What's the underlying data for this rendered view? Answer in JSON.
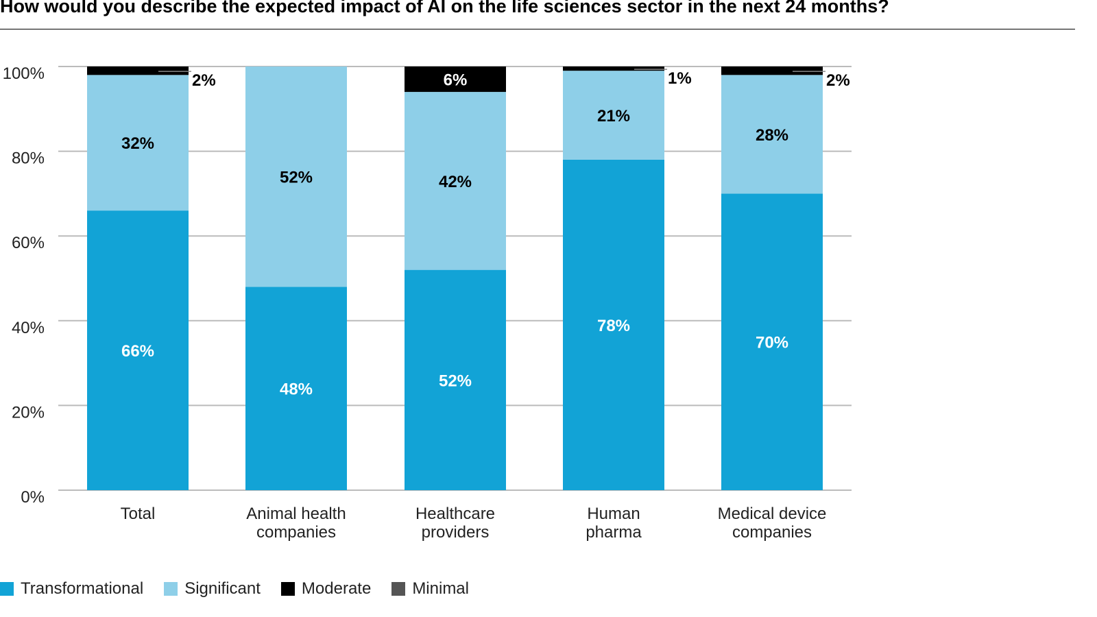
{
  "chart_data": {
    "type": "bar",
    "stacked": true,
    "title": "How would you describe the expected impact of AI on the life sciences sector in the next 24 months?",
    "categories": [
      [
        "Total"
      ],
      [
        "Animal health",
        "companies"
      ],
      [
        "Healthcare",
        "providers"
      ],
      [
        "Human",
        "pharma"
      ],
      [
        "Medical device",
        "companies"
      ]
    ],
    "series": [
      {
        "name": "Transformational",
        "color": "#12a3d6",
        "values": [
          66,
          48,
          52,
          78,
          70
        ],
        "label_color": "#ffffff"
      },
      {
        "name": "Significant",
        "color": "#8ecfe8",
        "values": [
          32,
          52,
          42,
          21,
          28
        ],
        "label_color": "#000000"
      },
      {
        "name": "Moderate",
        "color": "#000000",
        "values": [
          2,
          0,
          6,
          1,
          2
        ],
        "label_color": "#ffffff"
      },
      {
        "name": "Minimal",
        "color": "#555555",
        "values": [
          0,
          0,
          0,
          0,
          0
        ]
      }
    ],
    "ylim": [
      0,
      100
    ],
    "yticks": [
      "0%",
      "20%",
      "40%",
      "60%",
      "80%",
      "100%"
    ],
    "grid": true,
    "legend_placement": "bottom-left"
  }
}
